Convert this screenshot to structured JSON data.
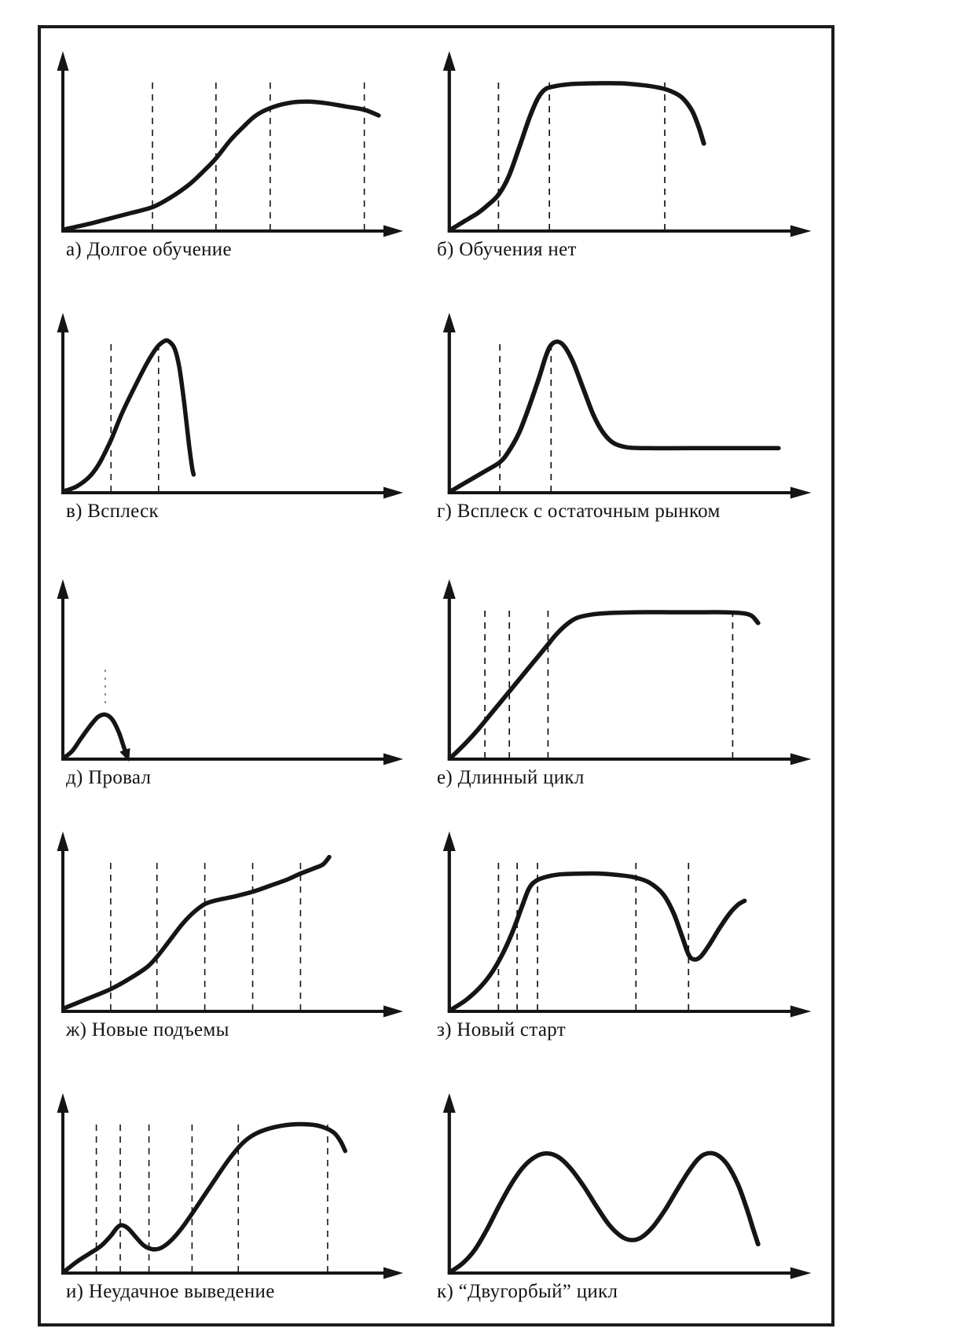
{
  "page": {
    "background": "#ffffff",
    "frame_border_color": "#1b1b1b",
    "ink_color": "#151515"
  },
  "chart_data": [
    {
      "id": "а",
      "title": "а) Долгое обучение",
      "type": "line",
      "x_range": [
        0,
        1
      ],
      "y_range": [
        0,
        1
      ],
      "dashed_vlines": [
        0.276,
        0.475,
        0.645,
        0.94
      ],
      "points": [
        [
          0,
          0.01
        ],
        [
          0.07,
          0.04
        ],
        [
          0.14,
          0.075
        ],
        [
          0.21,
          0.11
        ],
        [
          0.276,
          0.145
        ],
        [
          0.33,
          0.2
        ],
        [
          0.39,
          0.28
        ],
        [
          0.44,
          0.37
        ],
        [
          0.475,
          0.44
        ],
        [
          0.52,
          0.55
        ],
        [
          0.56,
          0.63
        ],
        [
          0.6,
          0.7
        ],
        [
          0.645,
          0.745
        ],
        [
          0.7,
          0.775
        ],
        [
          0.76,
          0.785
        ],
        [
          0.82,
          0.775
        ],
        [
          0.88,
          0.755
        ],
        [
          0.94,
          0.735
        ],
        [
          0.985,
          0.7
        ]
      ]
    },
    {
      "id": "б",
      "title": "б) Обучения нет",
      "type": "line",
      "x_range": [
        0,
        1
      ],
      "y_range": [
        0,
        1
      ],
      "dashed_vlines": [
        0.14,
        0.29,
        0.63
      ],
      "points": [
        [
          0,
          0.01
        ],
        [
          0.04,
          0.06
        ],
        [
          0.08,
          0.11
        ],
        [
          0.11,
          0.16
        ],
        [
          0.14,
          0.22
        ],
        [
          0.17,
          0.33
        ],
        [
          0.2,
          0.5
        ],
        [
          0.23,
          0.68
        ],
        [
          0.255,
          0.8
        ],
        [
          0.275,
          0.855
        ],
        [
          0.3,
          0.875
        ],
        [
          0.35,
          0.89
        ],
        [
          0.42,
          0.895
        ],
        [
          0.5,
          0.895
        ],
        [
          0.56,
          0.885
        ],
        [
          0.61,
          0.87
        ],
        [
          0.645,
          0.85
        ],
        [
          0.68,
          0.81
        ],
        [
          0.71,
          0.73
        ],
        [
          0.73,
          0.63
        ],
        [
          0.745,
          0.53
        ]
      ]
    },
    {
      "id": "в",
      "title": "в) Всплеск",
      "type": "line",
      "x_range": [
        0,
        1
      ],
      "y_range": [
        0,
        1
      ],
      "dashed_vlines": [
        0.146,
        0.295
      ],
      "points": [
        [
          0,
          0.01
        ],
        [
          0.04,
          0.04
        ],
        [
          0.08,
          0.1
        ],
        [
          0.11,
          0.18
        ],
        [
          0.146,
          0.32
        ],
        [
          0.18,
          0.48
        ],
        [
          0.22,
          0.64
        ],
        [
          0.26,
          0.79
        ],
        [
          0.29,
          0.88
        ],
        [
          0.31,
          0.915
        ],
        [
          0.325,
          0.92
        ],
        [
          0.345,
          0.875
        ],
        [
          0.36,
          0.76
        ],
        [
          0.375,
          0.55
        ],
        [
          0.39,
          0.3
        ],
        [
          0.4,
          0.155
        ],
        [
          0.405,
          0.11
        ]
      ]
    },
    {
      "id": "г",
      "title": "г) Всплеск с остаточным рынком",
      "type": "line",
      "x_range": [
        0,
        1
      ],
      "y_range": [
        0,
        1
      ],
      "dashed_vlines": [
        0.144,
        0.295
      ],
      "points": [
        [
          0,
          0.01
        ],
        [
          0.05,
          0.07
        ],
        [
          0.1,
          0.13
        ],
        [
          0.144,
          0.185
        ],
        [
          0.17,
          0.25
        ],
        [
          0.2,
          0.36
        ],
        [
          0.23,
          0.52
        ],
        [
          0.26,
          0.7
        ],
        [
          0.28,
          0.83
        ],
        [
          0.295,
          0.895
        ],
        [
          0.315,
          0.915
        ],
        [
          0.335,
          0.885
        ],
        [
          0.36,
          0.79
        ],
        [
          0.39,
          0.63
        ],
        [
          0.42,
          0.47
        ],
        [
          0.45,
          0.36
        ],
        [
          0.48,
          0.3
        ],
        [
          0.52,
          0.275
        ],
        [
          0.58,
          0.27
        ],
        [
          0.7,
          0.27
        ],
        [
          0.85,
          0.27
        ],
        [
          0.965,
          0.27
        ]
      ]
    },
    {
      "id": "д",
      "title": "д) Провал",
      "type": "line",
      "x_range": [
        0,
        1
      ],
      "y_range": [
        0,
        1
      ],
      "dashed_vlines": [],
      "dotted_vlines": [
        {
          "x": 0.128,
          "y_from": 0.34,
          "y_to": 0.55
        }
      ],
      "end_arrow": true,
      "points": [
        [
          0,
          0.01
        ],
        [
          0.025,
          0.05
        ],
        [
          0.05,
          0.12
        ],
        [
          0.08,
          0.2
        ],
        [
          0.105,
          0.255
        ],
        [
          0.128,
          0.27
        ],
        [
          0.15,
          0.24
        ],
        [
          0.17,
          0.165
        ],
        [
          0.185,
          0.08
        ],
        [
          0.196,
          0.02
        ]
      ]
    },
    {
      "id": "е",
      "title": "е) Длинный цикл",
      "type": "line",
      "x_range": [
        0,
        1
      ],
      "y_range": [
        0,
        1
      ],
      "dashed_vlines": [
        0.1,
        0.172,
        0.286,
        0.83
      ],
      "points": [
        [
          0,
          0.01
        ],
        [
          0.04,
          0.09
        ],
        [
          0.08,
          0.18
        ],
        [
          0.12,
          0.28
        ],
        [
          0.16,
          0.38
        ],
        [
          0.2,
          0.48
        ],
        [
          0.24,
          0.58
        ],
        [
          0.28,
          0.68
        ],
        [
          0.31,
          0.755
        ],
        [
          0.34,
          0.815
        ],
        [
          0.37,
          0.855
        ],
        [
          0.41,
          0.875
        ],
        [
          0.46,
          0.885
        ],
        [
          0.55,
          0.89
        ],
        [
          0.65,
          0.89
        ],
        [
          0.75,
          0.89
        ],
        [
          0.8,
          0.89
        ],
        [
          0.855,
          0.885
        ],
        [
          0.885,
          0.87
        ],
        [
          0.905,
          0.825
        ]
      ]
    },
    {
      "id": "ж",
      "title": "ж) Новые подъемы",
      "type": "line",
      "x_range": [
        0,
        1
      ],
      "y_range": [
        0,
        1
      ],
      "dashed_vlines": [
        0.145,
        0.29,
        0.44,
        0.59,
        0.74
      ],
      "points": [
        [
          0,
          0.02
        ],
        [
          0.07,
          0.075
        ],
        [
          0.145,
          0.135
        ],
        [
          0.21,
          0.205
        ],
        [
          0.26,
          0.27
        ],
        [
          0.29,
          0.33
        ],
        [
          0.33,
          0.43
        ],
        [
          0.37,
          0.53
        ],
        [
          0.405,
          0.6
        ],
        [
          0.44,
          0.65
        ],
        [
          0.48,
          0.675
        ],
        [
          0.53,
          0.695
        ],
        [
          0.59,
          0.725
        ],
        [
          0.65,
          0.765
        ],
        [
          0.7,
          0.8
        ],
        [
          0.74,
          0.835
        ],
        [
          0.78,
          0.865
        ],
        [
          0.81,
          0.89
        ],
        [
          0.83,
          0.935
        ]
      ]
    },
    {
      "id": "з",
      "title": "з) Новый старт",
      "type": "line",
      "x_range": [
        0,
        1
      ],
      "y_range": [
        0,
        1
      ],
      "dashed_vlines": [
        0.14,
        0.195,
        0.255,
        0.545,
        0.7
      ],
      "points": [
        [
          0,
          0.01
        ],
        [
          0.045,
          0.07
        ],
        [
          0.09,
          0.155
        ],
        [
          0.125,
          0.25
        ],
        [
          0.155,
          0.36
        ],
        [
          0.185,
          0.5
        ],
        [
          0.21,
          0.64
        ],
        [
          0.23,
          0.745
        ],
        [
          0.25,
          0.79
        ],
        [
          0.28,
          0.815
        ],
        [
          0.32,
          0.83
        ],
        [
          0.38,
          0.835
        ],
        [
          0.44,
          0.835
        ],
        [
          0.5,
          0.825
        ],
        [
          0.545,
          0.81
        ],
        [
          0.585,
          0.78
        ],
        [
          0.625,
          0.71
        ],
        [
          0.655,
          0.6
        ],
        [
          0.68,
          0.46
        ],
        [
          0.7,
          0.345
        ],
        [
          0.715,
          0.315
        ],
        [
          0.735,
          0.33
        ],
        [
          0.76,
          0.4
        ],
        [
          0.79,
          0.5
        ],
        [
          0.82,
          0.59
        ],
        [
          0.845,
          0.645
        ],
        [
          0.865,
          0.67
        ]
      ]
    },
    {
      "id": "и",
      "title": "и) Неудачное выведение",
      "type": "line",
      "x_range": [
        0,
        1
      ],
      "y_range": [
        0,
        1
      ],
      "dashed_vlines": [
        0.1,
        0.175,
        0.265,
        0.4,
        0.545,
        0.825
      ],
      "points": [
        [
          0,
          0.01
        ],
        [
          0.04,
          0.07
        ],
        [
          0.08,
          0.12
        ],
        [
          0.115,
          0.165
        ],
        [
          0.145,
          0.225
        ],
        [
          0.165,
          0.275
        ],
        [
          0.18,
          0.29
        ],
        [
          0.2,
          0.27
        ],
        [
          0.225,
          0.215
        ],
        [
          0.25,
          0.165
        ],
        [
          0.275,
          0.145
        ],
        [
          0.3,
          0.15
        ],
        [
          0.33,
          0.19
        ],
        [
          0.365,
          0.265
        ],
        [
          0.4,
          0.36
        ],
        [
          0.44,
          0.475
        ],
        [
          0.48,
          0.59
        ],
        [
          0.52,
          0.7
        ],
        [
          0.56,
          0.79
        ],
        [
          0.6,
          0.845
        ],
        [
          0.65,
          0.88
        ],
        [
          0.71,
          0.9
        ],
        [
          0.77,
          0.9
        ],
        [
          0.81,
          0.885
        ],
        [
          0.845,
          0.85
        ],
        [
          0.865,
          0.8
        ],
        [
          0.88,
          0.74
        ]
      ]
    },
    {
      "id": "к",
      "title": "к) “Двугорбый” цикл",
      "type": "line",
      "x_range": [
        0,
        1
      ],
      "y_range": [
        0,
        1
      ],
      "dashed_vlines": [],
      "points": [
        [
          0,
          0.01
        ],
        [
          0.035,
          0.06
        ],
        [
          0.07,
          0.14
        ],
        [
          0.105,
          0.26
        ],
        [
          0.14,
          0.4
        ],
        [
          0.175,
          0.53
        ],
        [
          0.21,
          0.635
        ],
        [
          0.245,
          0.7
        ],
        [
          0.28,
          0.725
        ],
        [
          0.315,
          0.705
        ],
        [
          0.35,
          0.64
        ],
        [
          0.39,
          0.53
        ],
        [
          0.43,
          0.4
        ],
        [
          0.465,
          0.295
        ],
        [
          0.5,
          0.225
        ],
        [
          0.53,
          0.2
        ],
        [
          0.56,
          0.215
        ],
        [
          0.595,
          0.28
        ],
        [
          0.63,
          0.38
        ],
        [
          0.665,
          0.5
        ],
        [
          0.7,
          0.615
        ],
        [
          0.73,
          0.695
        ],
        [
          0.755,
          0.725
        ],
        [
          0.785,
          0.715
        ],
        [
          0.815,
          0.655
        ],
        [
          0.845,
          0.54
        ],
        [
          0.87,
          0.4
        ],
        [
          0.89,
          0.27
        ],
        [
          0.905,
          0.175
        ]
      ]
    }
  ]
}
